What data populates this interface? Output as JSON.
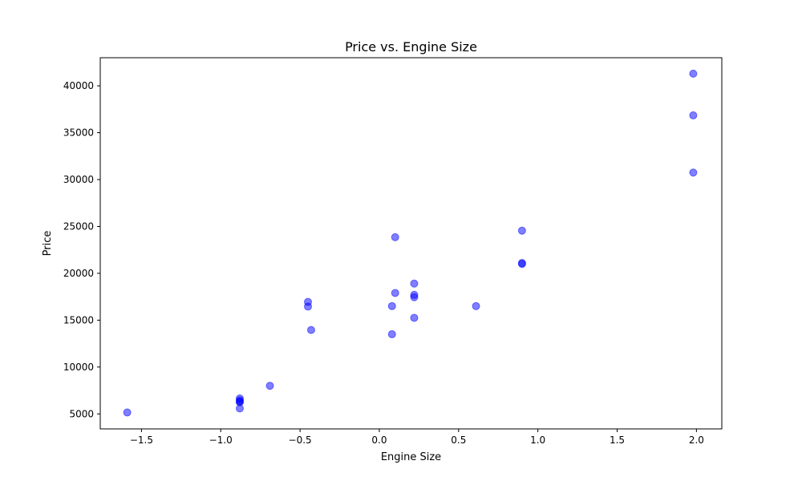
{
  "chart_data": {
    "type": "scatter",
    "title": "Price vs. Engine Size",
    "xlabel": "Engine Size",
    "ylabel": "Price",
    "xlim": [
      -1.76,
      2.16
    ],
    "ylim": [
      3400,
      43000
    ],
    "xticks": [
      {
        "value": -1.5,
        "label": "−1.5"
      },
      {
        "value": -1.0,
        "label": "−1.0"
      },
      {
        "value": -0.5,
        "label": "−0.5"
      },
      {
        "value": 0.0,
        "label": "0.0"
      },
      {
        "value": 0.5,
        "label": "0.5"
      },
      {
        "value": 1.0,
        "label": "1.0"
      },
      {
        "value": 1.5,
        "label": "1.5"
      },
      {
        "value": 2.0,
        "label": "2.0"
      }
    ],
    "yticks": [
      {
        "value": 5000,
        "label": "5000"
      },
      {
        "value": 10000,
        "label": "10000"
      },
      {
        "value": 15000,
        "label": "15000"
      },
      {
        "value": 20000,
        "label": "20000"
      },
      {
        "value": 25000,
        "label": "25000"
      },
      {
        "value": 30000,
        "label": "30000"
      },
      {
        "value": 35000,
        "label": "35000"
      },
      {
        "value": 40000,
        "label": "40000"
      }
    ],
    "grid": false,
    "legend": null,
    "series": [
      {
        "color": "#0000ff",
        "alpha": 0.5,
        "points": [
          {
            "x": -1.59,
            "y": 5150
          },
          {
            "x": -0.88,
            "y": 6650
          },
          {
            "x": -0.88,
            "y": 6450
          },
          {
            "x": -0.88,
            "y": 6300
          },
          {
            "x": -0.88,
            "y": 6250
          },
          {
            "x": -0.88,
            "y": 5580
          },
          {
            "x": -0.69,
            "y": 8000
          },
          {
            "x": -0.45,
            "y": 16950
          },
          {
            "x": -0.45,
            "y": 16450
          },
          {
            "x": -0.43,
            "y": 13950
          },
          {
            "x": 0.08,
            "y": 16500
          },
          {
            "x": 0.08,
            "y": 13500
          },
          {
            "x": 0.1,
            "y": 23850
          },
          {
            "x": 0.1,
            "y": 17900
          },
          {
            "x": 0.22,
            "y": 18900
          },
          {
            "x": 0.22,
            "y": 17700
          },
          {
            "x": 0.22,
            "y": 17450
          },
          {
            "x": 0.22,
            "y": 15250
          },
          {
            "x": 0.61,
            "y": 16500
          },
          {
            "x": 0.9,
            "y": 24550
          },
          {
            "x": 0.9,
            "y": 21100
          },
          {
            "x": 0.9,
            "y": 21000
          },
          {
            "x": 1.98,
            "y": 41300
          },
          {
            "x": 1.98,
            "y": 36850
          },
          {
            "x": 1.98,
            "y": 30750
          }
        ]
      }
    ]
  }
}
